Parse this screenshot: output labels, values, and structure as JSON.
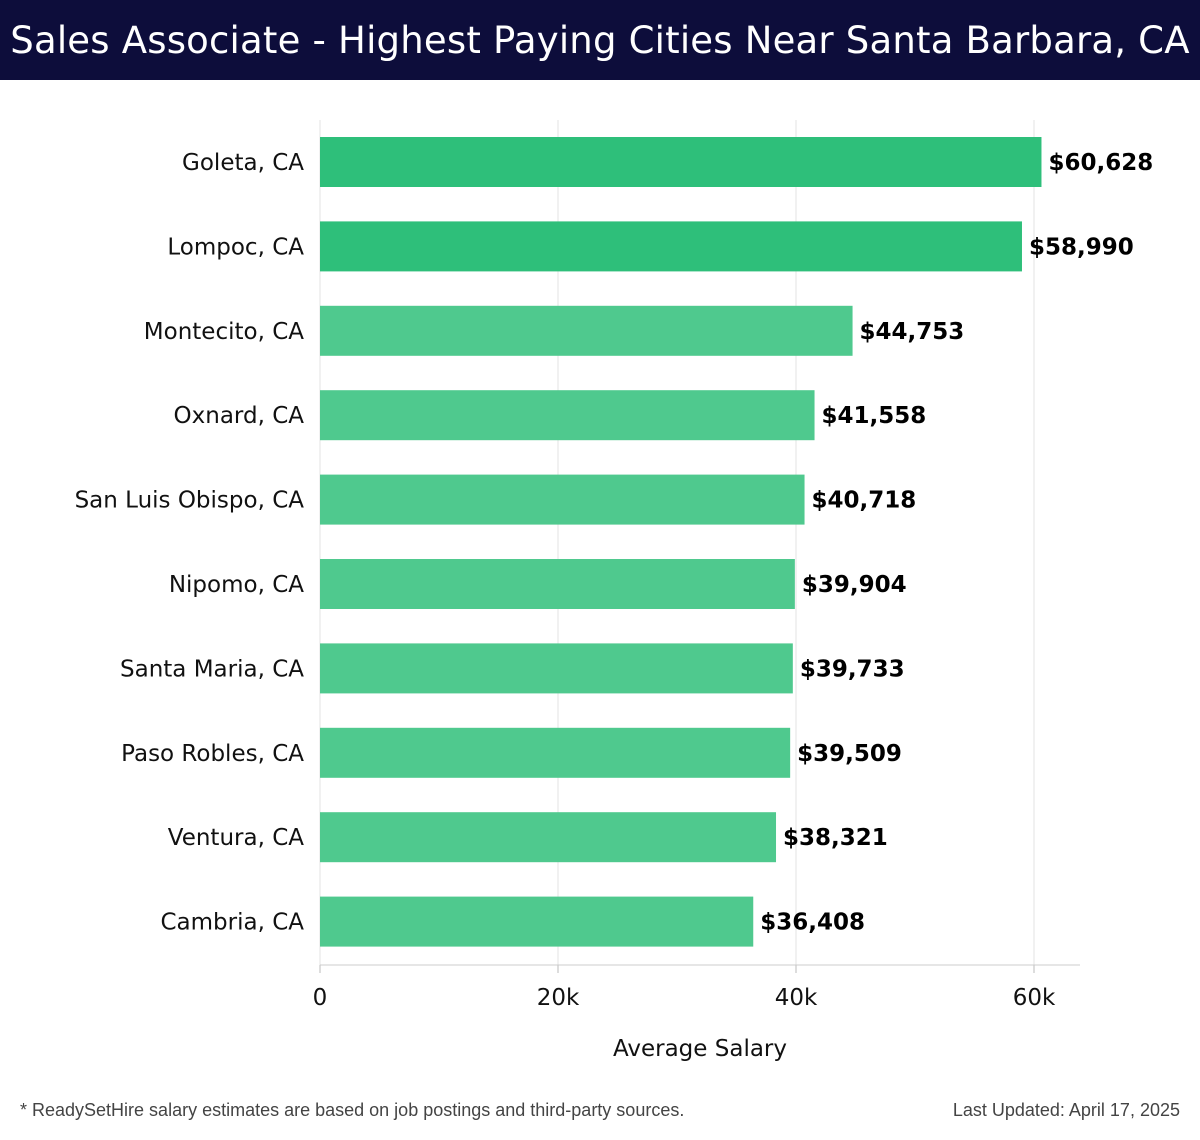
{
  "header": {
    "title": "Sales Associate - Highest Paying Cities Near Santa Barbara, CA"
  },
  "chart_data": {
    "type": "bar",
    "orientation": "horizontal",
    "categories": [
      "Goleta, CA",
      "Lompoc, CA",
      "Montecito, CA",
      "Oxnard, CA",
      "San Luis Obispo, CA",
      "Nipomo, CA",
      "Santa Maria, CA",
      "Paso Robles, CA",
      "Ventura, CA",
      "Cambria, CA"
    ],
    "values": [
      60628,
      58990,
      44753,
      41558,
      40718,
      39904,
      39733,
      39509,
      38321,
      36408
    ],
    "value_labels": [
      "$60,628",
      "$58,990",
      "$44,753",
      "$41,558",
      "$40,718",
      "$39,904",
      "$39,733",
      "$39,509",
      "$38,321",
      "$36,408"
    ],
    "xlabel": "Average Salary",
    "ylabel": "",
    "xlim": [
      0,
      64000
    ],
    "xticks": [
      0,
      20000,
      40000,
      60000
    ],
    "xtick_labels": [
      "0",
      "20k",
      "40k",
      "60k"
    ],
    "grid": true,
    "colors": {
      "top_bars": "#2ebf7a",
      "other_bars": "#4fc98e",
      "highlight_count": 2
    }
  },
  "footer": {
    "note": "* ReadySetHire salary estimates are based on job postings and third-party sources.",
    "updated": "Last Updated: April 17, 2025"
  }
}
